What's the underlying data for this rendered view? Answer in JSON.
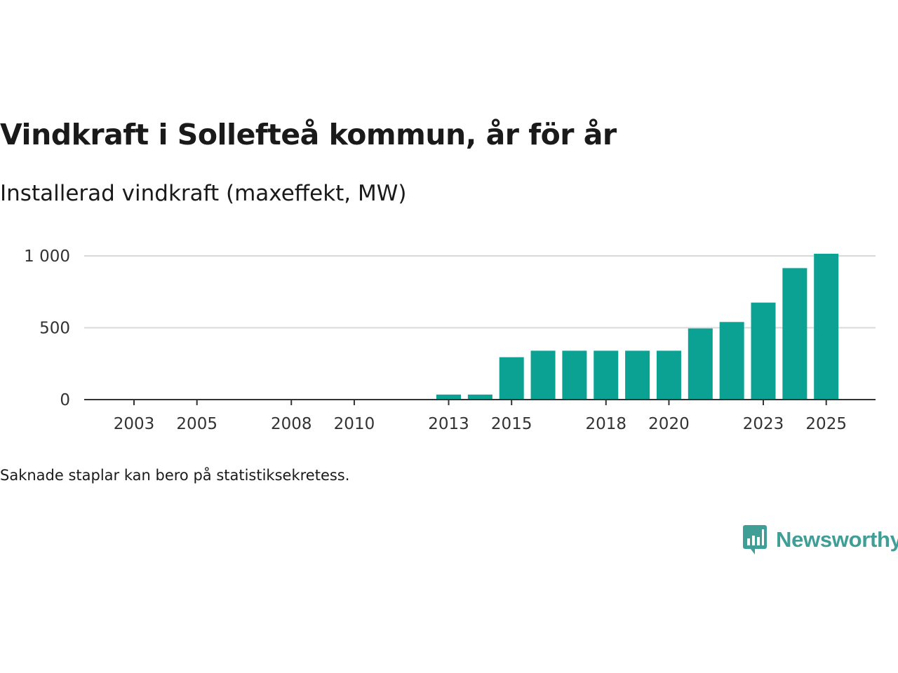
{
  "title": "Vindkraft i Sollefteå kommun, år för år",
  "subtitle": "Installerad vindkraft (maxeffekt, MW)",
  "note": "Saknade staplar kan bero på statistiksekretess.",
  "brand": {
    "name": "Newsworthy",
    "color": "#3f9e96"
  },
  "colors": {
    "bar": "#0ba294",
    "grid": "#d9d9d9",
    "axis": "#333333"
  },
  "chart_data": {
    "type": "bar",
    "title": "Vindkraft i Sollefteå kommun, år för år",
    "ylabel": "Installerad vindkraft (maxeffekt, MW)",
    "xlabel": "",
    "ylim": [
      0,
      1000
    ],
    "xlim": [
      2003,
      2025
    ],
    "y_ticks": [
      0,
      500,
      1000
    ],
    "y_tick_labels": [
      "0",
      "500",
      "1 000"
    ],
    "x_ticks": [
      2003,
      2005,
      2008,
      2010,
      2013,
      2015,
      2018,
      2020,
      2023,
      2025
    ],
    "x_tick_labels": [
      "2003",
      "2005",
      "2008",
      "2010",
      "2013",
      "2015",
      "2018",
      "2020",
      "2023",
      "2025"
    ],
    "categories": [
      2013,
      2014,
      2015,
      2016,
      2017,
      2018,
      2019,
      2020,
      2021,
      2022,
      2023,
      2024,
      2025
    ],
    "values": [
      35,
      35,
      295,
      340,
      340,
      340,
      340,
      340,
      495,
      540,
      675,
      915,
      1015
    ]
  }
}
